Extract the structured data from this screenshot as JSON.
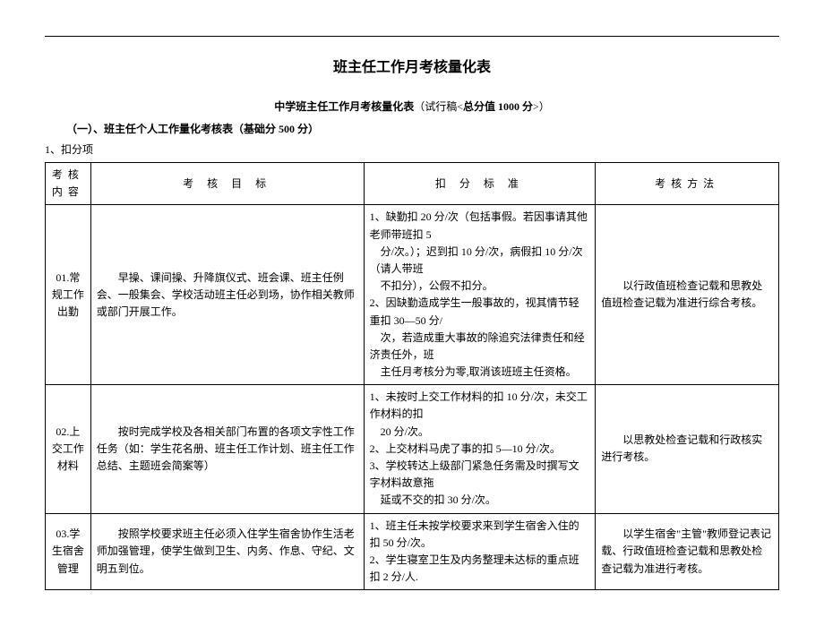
{
  "title": "班主任工作月考核量化表",
  "subtitle_prefix": "中学班主任工作月考核量化表",
  "subtitle_paren": "（试行稿<",
  "subtitle_bold": "总分值 1000 分",
  "subtitle_close": ">）",
  "section1": "（一）、班主任个人工作量化考核表（基础分 500 分）",
  "deduct_label": "1、扣分项",
  "headers": {
    "h1": "考核内容",
    "h2": "考 核 目 标",
    "h3": "扣 分 标 准",
    "h4": "考核方法"
  },
  "rows": [
    {
      "c1": "01.常规工作出勤",
      "c2": "　　早操、课间操、升降旗仪式、班会课、班主任例会、一般集会、学校活动班主任必到场，协作相关教师或部门开展工作。",
      "c3": "1、缺勤扣 20 分/次（包括事假。若因事请其他老师带班扣 5\n　分/次。）；迟到扣 10 分/次，病假扣 10 分/次（请人带班\n　不扣分），公假不扣分。\n2、因缺勤造成学生一般事故的，视其情节轻重扣 30—50 分/\n　次，若造成重大事故的除追究法律责任和经济责任外，班\n　主任月考核分为零,取消该班班主任资格。",
      "c4": "　　以行政值班检查记载和思教处值班检查记载为准进行综合考核。"
    },
    {
      "c1": "02.上交工作材料",
      "c2": "　　按时完成学校及各相关部门布置的各项文字性工作任务（如：学生花名册、班主任工作计划、班主任工作总结、主题班会简案等）",
      "c3": "1、未按时上交工作材料的扣 10 分/次，未交工作材料的扣\n　20 分/次。\n2、上交材料马虎了事的扣 5—10 分/次。\n3、学校转达上级部门紧急任务需及时撰写文字材料故意拖\n　延或不交的扣 30 分/次。",
      "c4": "　　以思教处检查记载和行政核实进行考核。"
    },
    {
      "c1": "03.学生宿舍管理",
      "c2": "　　按照学校要求班主任必须入住学生宿舍协作生活老师加强管理，使学生做到卫生、内务、作息、守纪、文明五到位。",
      "c3": "1、班主任未按学校要求来到学生宿舍入住的扣 50 分/次。\n2、学生寝室卫生及内务整理未达标的重点班扣 2 分/人.",
      "c4": "　　以学生宿舍\"主管\"教师登记表记载、行政值班检查记载和思教处检查记载为准进行考核。"
    }
  ]
}
